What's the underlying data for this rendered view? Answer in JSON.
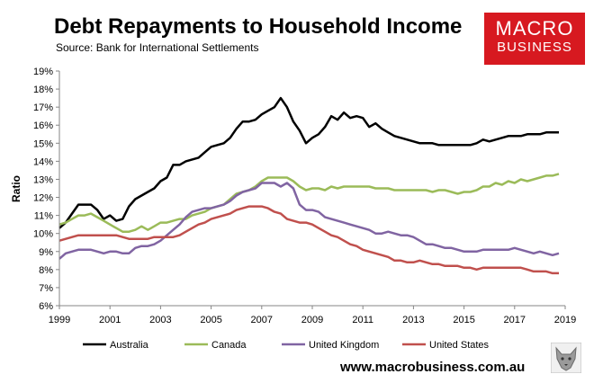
{
  "header": {
    "title": "Debt Repayments to Household Income",
    "subtitle": "Source: Bank for International Settlements"
  },
  "logo": {
    "line1": "MACRO",
    "line2": "BUSINESS",
    "color": "#d71920"
  },
  "footer": {
    "website": "www.macrobusiness.com.au"
  },
  "chart_data": {
    "type": "line",
    "title": "Debt Repayments to Household Income",
    "xlabel": "",
    "ylabel": "Ratio",
    "xlim": [
      1999,
      2019
    ],
    "ylim": [
      6,
      19
    ],
    "xticks": [
      "1999",
      "2001",
      "2003",
      "2005",
      "2007",
      "2009",
      "2011",
      "2013",
      "2015",
      "2017",
      "2019"
    ],
    "yticks": [
      "6%",
      "7%",
      "8%",
      "9%",
      "10%",
      "11%",
      "12%",
      "13%",
      "14%",
      "15%",
      "16%",
      "17%",
      "18%",
      "19%"
    ],
    "grid": false,
    "legend_position": "bottom",
    "series": [
      {
        "name": "Australia",
        "color": "#000000",
        "x": [
          1999,
          1999.25,
          1999.5,
          1999.75,
          2000,
          2000.25,
          2000.5,
          2000.75,
          2001,
          2001.25,
          2001.5,
          2001.75,
          2002,
          2002.25,
          2002.5,
          2002.75,
          2003,
          2003.25,
          2003.5,
          2003.75,
          2004,
          2004.25,
          2004.5,
          2004.75,
          2005,
          2005.25,
          2005.5,
          2005.75,
          2006,
          2006.25,
          2006.5,
          2006.75,
          2007,
          2007.25,
          2007.5,
          2007.75,
          2008,
          2008.25,
          2008.5,
          2008.75,
          2009,
          2009.25,
          2009.5,
          2009.75,
          2010,
          2010.25,
          2010.5,
          2010.75,
          2011,
          2011.25,
          2011.5,
          2011.75,
          2012,
          2012.25,
          2012.5,
          2012.75,
          2013,
          2013.25,
          2013.5,
          2013.75,
          2014,
          2014.25,
          2014.5,
          2014.75,
          2015,
          2015.25,
          2015.5,
          2015.75,
          2016,
          2016.25,
          2016.5,
          2016.75,
          2017,
          2017.25,
          2017.5,
          2017.75,
          2018,
          2018.25,
          2018.5,
          2018.75
        ],
        "values": [
          10.3,
          10.6,
          11.1,
          11.6,
          11.6,
          11.6,
          11.3,
          10.8,
          11.0,
          10.7,
          10.8,
          11.5,
          11.9,
          12.1,
          12.3,
          12.5,
          12.9,
          13.1,
          13.8,
          13.8,
          14.0,
          14.1,
          14.2,
          14.5,
          14.8,
          14.9,
          15.0,
          15.3,
          15.8,
          16.2,
          16.2,
          16.3,
          16.6,
          16.8,
          17.0,
          17.5,
          17.0,
          16.2,
          15.7,
          15.0,
          15.3,
          15.5,
          15.9,
          16.5,
          16.3,
          16.7,
          16.4,
          16.5,
          16.4,
          15.9,
          16.1,
          15.8,
          15.6,
          15.4,
          15.3,
          15.2,
          15.1,
          15.0,
          15.0,
          15.0,
          14.9,
          14.9,
          14.9,
          14.9,
          14.9,
          14.9,
          15.0,
          15.2,
          15.1,
          15.2,
          15.3,
          15.4,
          15.4,
          15.4,
          15.5,
          15.5,
          15.5,
          15.6,
          15.6,
          15.6
        ]
      },
      {
        "name": "Canada",
        "color": "#9bbb59",
        "x": [
          1999,
          1999.25,
          1999.5,
          1999.75,
          2000,
          2000.25,
          2000.5,
          2000.75,
          2001,
          2001.25,
          2001.5,
          2001.75,
          2002,
          2002.25,
          2002.5,
          2002.75,
          2003,
          2003.25,
          2003.5,
          2003.75,
          2004,
          2004.25,
          2004.5,
          2004.75,
          2005,
          2005.25,
          2005.5,
          2005.75,
          2006,
          2006.25,
          2006.5,
          2006.75,
          2007,
          2007.25,
          2007.5,
          2007.75,
          2008,
          2008.25,
          2008.5,
          2008.75,
          2009,
          2009.25,
          2009.5,
          2009.75,
          2010,
          2010.25,
          2010.5,
          2010.75,
          2011,
          2011.25,
          2011.5,
          2011.75,
          2012,
          2012.25,
          2012.5,
          2012.75,
          2013,
          2013.25,
          2013.5,
          2013.75,
          2014,
          2014.25,
          2014.5,
          2014.75,
          2015,
          2015.25,
          2015.5,
          2015.75,
          2016,
          2016.25,
          2016.5,
          2016.75,
          2017,
          2017.25,
          2017.5,
          2017.75,
          2018,
          2018.25,
          2018.5,
          2018.75
        ],
        "values": [
          10.5,
          10.6,
          10.8,
          11.0,
          11.0,
          11.1,
          10.9,
          10.7,
          10.5,
          10.3,
          10.1,
          10.1,
          10.2,
          10.4,
          10.2,
          10.4,
          10.6,
          10.6,
          10.7,
          10.8,
          10.8,
          11.0,
          11.1,
          11.2,
          11.4,
          11.5,
          11.6,
          11.9,
          12.2,
          12.3,
          12.4,
          12.6,
          12.9,
          13.1,
          13.1,
          13.1,
          13.1,
          12.9,
          12.6,
          12.4,
          12.5,
          12.5,
          12.4,
          12.6,
          12.5,
          12.6,
          12.6,
          12.6,
          12.6,
          12.6,
          12.5,
          12.5,
          12.5,
          12.4,
          12.4,
          12.4,
          12.4,
          12.4,
          12.4,
          12.3,
          12.4,
          12.4,
          12.3,
          12.2,
          12.3,
          12.3,
          12.4,
          12.6,
          12.6,
          12.8,
          12.7,
          12.9,
          12.8,
          13.0,
          12.9,
          13.0,
          13.1,
          13.2,
          13.2,
          13.3
        ]
      },
      {
        "name": "United Kingdom",
        "color": "#8064a2",
        "x": [
          1999,
          1999.25,
          1999.5,
          1999.75,
          2000,
          2000.25,
          2000.5,
          2000.75,
          2001,
          2001.25,
          2001.5,
          2001.75,
          2002,
          2002.25,
          2002.5,
          2002.75,
          2003,
          2003.25,
          2003.5,
          2003.75,
          2004,
          2004.25,
          2004.5,
          2004.75,
          2005,
          2005.25,
          2005.5,
          2005.75,
          2006,
          2006.25,
          2006.5,
          2006.75,
          2007,
          2007.25,
          2007.5,
          2007.75,
          2008,
          2008.25,
          2008.5,
          2008.75,
          2009,
          2009.25,
          2009.5,
          2009.75,
          2010,
          2010.25,
          2010.5,
          2010.75,
          2011,
          2011.25,
          2011.5,
          2011.75,
          2012,
          2012.25,
          2012.5,
          2012.75,
          2013,
          2013.25,
          2013.5,
          2013.75,
          2014,
          2014.25,
          2014.5,
          2014.75,
          2015,
          2015.25,
          2015.5,
          2015.75,
          2016,
          2016.25,
          2016.5,
          2016.75,
          2017,
          2017.25,
          2017.5,
          2017.75,
          2018,
          2018.25,
          2018.5,
          2018.75
        ],
        "values": [
          8.6,
          8.9,
          9.0,
          9.1,
          9.1,
          9.1,
          9.0,
          8.9,
          9.0,
          9.0,
          8.9,
          8.9,
          9.2,
          9.3,
          9.3,
          9.4,
          9.6,
          9.9,
          10.2,
          10.5,
          10.9,
          11.2,
          11.3,
          11.4,
          11.4,
          11.5,
          11.6,
          11.8,
          12.1,
          12.3,
          12.4,
          12.5,
          12.8,
          12.8,
          12.8,
          12.6,
          12.8,
          12.5,
          11.6,
          11.3,
          11.3,
          11.2,
          10.9,
          10.8,
          10.7,
          10.6,
          10.5,
          10.4,
          10.3,
          10.2,
          10.0,
          10.0,
          10.1,
          10.0,
          9.9,
          9.9,
          9.8,
          9.6,
          9.4,
          9.4,
          9.3,
          9.2,
          9.2,
          9.1,
          9.0,
          9.0,
          9.0,
          9.1,
          9.1,
          9.1,
          9.1,
          9.1,
          9.2,
          9.1,
          9.0,
          8.9,
          9.0,
          8.9,
          8.8,
          8.9
        ]
      },
      {
        "name": "United States",
        "color": "#c0504d",
        "x": [
          1999,
          1999.25,
          1999.5,
          1999.75,
          2000,
          2000.25,
          2000.5,
          2000.75,
          2001,
          2001.25,
          2001.5,
          2001.75,
          2002,
          2002.25,
          2002.5,
          2002.75,
          2003,
          2003.25,
          2003.5,
          2003.75,
          2004,
          2004.25,
          2004.5,
          2004.75,
          2005,
          2005.25,
          2005.5,
          2005.75,
          2006,
          2006.25,
          2006.5,
          2006.75,
          2007,
          2007.25,
          2007.5,
          2007.75,
          2008,
          2008.25,
          2008.5,
          2008.75,
          2009,
          2009.25,
          2009.5,
          2009.75,
          2010,
          2010.25,
          2010.5,
          2010.75,
          2011,
          2011.25,
          2011.5,
          2011.75,
          2012,
          2012.25,
          2012.5,
          2012.75,
          2013,
          2013.25,
          2013.5,
          2013.75,
          2014,
          2014.25,
          2014.5,
          2014.75,
          2015,
          2015.25,
          2015.5,
          2015.75,
          2016,
          2016.25,
          2016.5,
          2016.75,
          2017,
          2017.25,
          2017.5,
          2017.75,
          2018,
          2018.25,
          2018.5,
          2018.75
        ],
        "values": [
          9.6,
          9.7,
          9.8,
          9.9,
          9.9,
          9.9,
          9.9,
          9.9,
          9.9,
          9.9,
          9.8,
          9.7,
          9.7,
          9.7,
          9.7,
          9.8,
          9.8,
          9.8,
          9.8,
          9.9,
          10.1,
          10.3,
          10.5,
          10.6,
          10.8,
          10.9,
          11.0,
          11.1,
          11.3,
          11.4,
          11.5,
          11.5,
          11.5,
          11.4,
          11.2,
          11.1,
          10.8,
          10.7,
          10.6,
          10.6,
          10.5,
          10.3,
          10.1,
          9.9,
          9.8,
          9.6,
          9.4,
          9.3,
          9.1,
          9.0,
          8.9,
          8.8,
          8.7,
          8.5,
          8.5,
          8.4,
          8.4,
          8.5,
          8.4,
          8.3,
          8.3,
          8.2,
          8.2,
          8.2,
          8.1,
          8.1,
          8.0,
          8.1,
          8.1,
          8.1,
          8.1,
          8.1,
          8.1,
          8.1,
          8.0,
          7.9,
          7.9,
          7.9,
          7.8,
          7.8
        ]
      }
    ]
  }
}
